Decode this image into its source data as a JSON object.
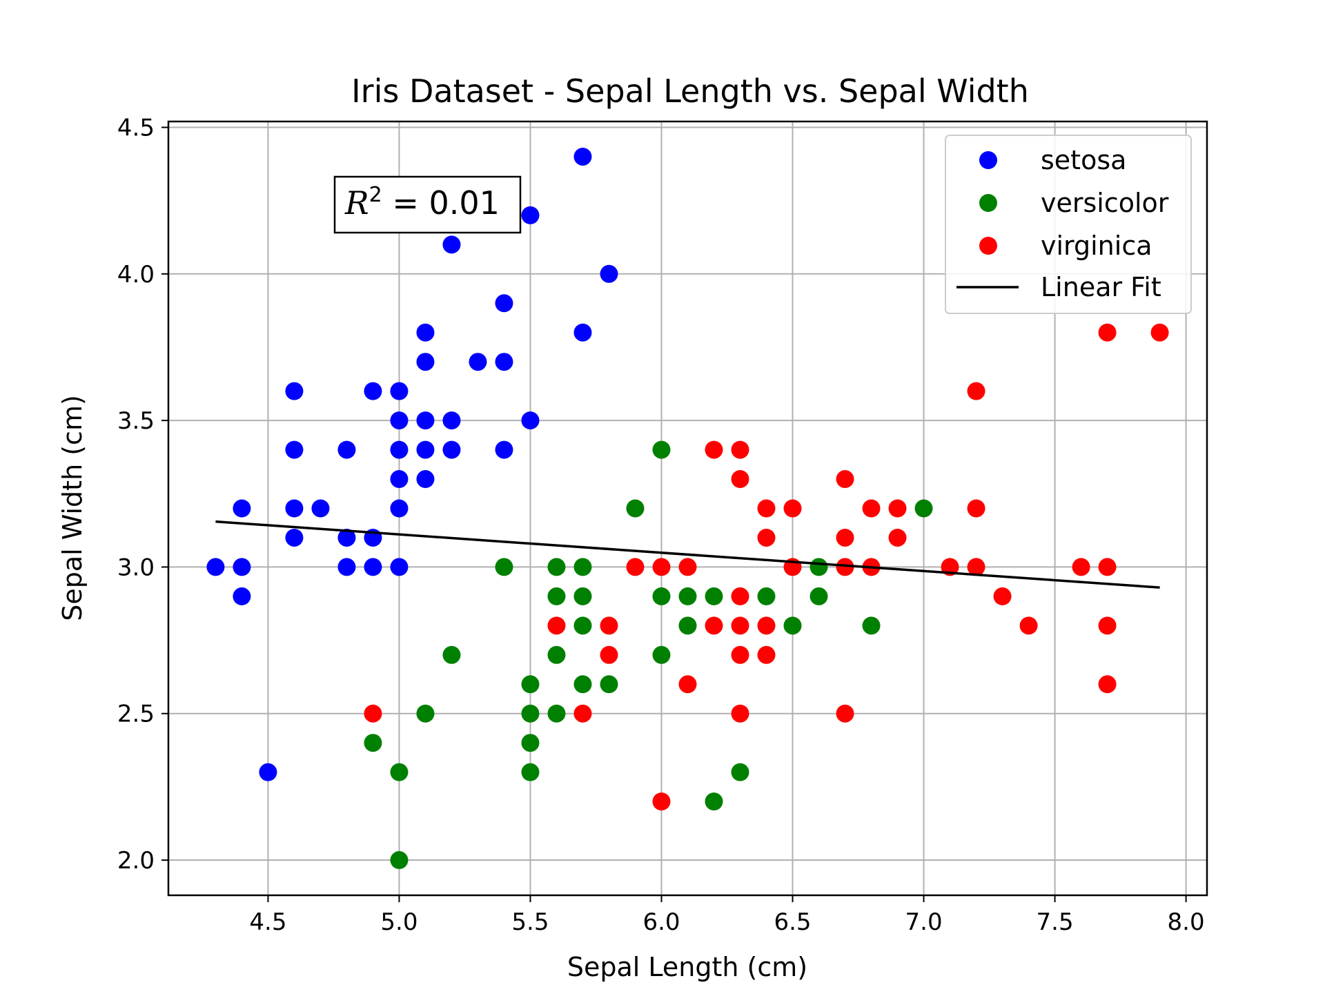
{
  "colors": {
    "setosa": "#0000ff",
    "versicolor": "#008000",
    "virginica": "#ff0000",
    "fit": "#000000",
    "grid": "#b0b0b0"
  },
  "chart_data": {
    "type": "scatter",
    "title": "Iris Dataset - Sepal Length vs. Sepal Width",
    "xlabel": "Sepal Length (cm)",
    "ylabel": "Sepal Width (cm)",
    "xlim": [
      4.12,
      8.08
    ],
    "ylim": [
      1.88,
      4.52
    ],
    "xticks": [
      4.5,
      5.0,
      5.5,
      6.0,
      6.5,
      7.0,
      7.5,
      8.0
    ],
    "xtick_labels": [
      "4.5",
      "5.0",
      "5.5",
      "6.0",
      "6.5",
      "7.0",
      "7.5",
      "8.0"
    ],
    "yticks": [
      2.0,
      2.5,
      3.0,
      3.5,
      4.0,
      4.5
    ],
    "ytick_labels": [
      "2.0",
      "2.5",
      "3.0",
      "3.5",
      "4.0",
      "4.5"
    ],
    "grid": true,
    "legend_position": "top-right",
    "annotation": {
      "text": "R^2 = 0.01",
      "base": "R",
      "exponent": "2",
      "rest": " = 0.01"
    },
    "series": [
      {
        "name": "setosa",
        "color": "#0000ff",
        "points": [
          [
            4.3,
            3.0
          ],
          [
            4.4,
            3.2
          ],
          [
            4.4,
            3.0
          ],
          [
            4.4,
            2.9
          ],
          [
            4.5,
            2.3
          ],
          [
            4.6,
            3.6
          ],
          [
            4.6,
            3.4
          ],
          [
            4.6,
            3.2
          ],
          [
            4.6,
            3.1
          ],
          [
            4.7,
            3.2
          ],
          [
            4.8,
            3.4
          ],
          [
            4.8,
            3.1
          ],
          [
            4.8,
            3.0
          ],
          [
            4.9,
            3.6
          ],
          [
            4.9,
            3.1
          ],
          [
            4.9,
            3.0
          ],
          [
            5.0,
            3.6
          ],
          [
            5.0,
            3.5
          ],
          [
            5.0,
            3.4
          ],
          [
            5.0,
            3.3
          ],
          [
            5.0,
            3.2
          ],
          [
            5.0,
            3.0
          ],
          [
            5.1,
            3.8
          ],
          [
            5.1,
            3.7
          ],
          [
            5.1,
            3.5
          ],
          [
            5.1,
            3.4
          ],
          [
            5.1,
            3.3
          ],
          [
            5.2,
            4.1
          ],
          [
            5.2,
            3.5
          ],
          [
            5.2,
            3.4
          ],
          [
            5.3,
            3.7
          ],
          [
            5.4,
            3.9
          ],
          [
            5.4,
            3.7
          ],
          [
            5.4,
            3.4
          ],
          [
            5.5,
            4.2
          ],
          [
            5.5,
            3.5
          ],
          [
            5.7,
            4.4
          ],
          [
            5.7,
            3.8
          ],
          [
            5.8,
            4.0
          ]
        ]
      },
      {
        "name": "versicolor",
        "color": "#008000",
        "points": [
          [
            4.9,
            2.4
          ],
          [
            5.0,
            2.3
          ],
          [
            5.0,
            2.0
          ],
          [
            5.1,
            2.5
          ],
          [
            5.2,
            2.7
          ],
          [
            5.4,
            3.0
          ],
          [
            5.5,
            2.6
          ],
          [
            5.5,
            2.5
          ],
          [
            5.5,
            2.4
          ],
          [
            5.5,
            2.3
          ],
          [
            5.6,
            3.0
          ],
          [
            5.6,
            2.9
          ],
          [
            5.6,
            2.7
          ],
          [
            5.6,
            2.5
          ],
          [
            5.7,
            3.0
          ],
          [
            5.7,
            2.9
          ],
          [
            5.7,
            2.8
          ],
          [
            5.7,
            2.6
          ],
          [
            5.8,
            2.6
          ],
          [
            5.9,
            3.2
          ],
          [
            6.0,
            3.4
          ],
          [
            6.0,
            2.9
          ],
          [
            6.0,
            2.7
          ],
          [
            6.1,
            2.9
          ],
          [
            6.1,
            2.8
          ],
          [
            6.2,
            2.9
          ],
          [
            6.2,
            2.2
          ],
          [
            6.3,
            2.3
          ],
          [
            6.4,
            2.9
          ],
          [
            6.5,
            2.8
          ],
          [
            6.6,
            3.0
          ],
          [
            6.6,
            2.9
          ],
          [
            6.8,
            2.8
          ],
          [
            7.0,
            3.2
          ]
        ]
      },
      {
        "name": "virginica",
        "color": "#ff0000",
        "points": [
          [
            4.9,
            2.5
          ],
          [
            5.6,
            2.8
          ],
          [
            5.7,
            2.5
          ],
          [
            5.8,
            2.8
          ],
          [
            5.8,
            2.7
          ],
          [
            5.9,
            3.0
          ],
          [
            6.0,
            3.0
          ],
          [
            6.0,
            2.2
          ],
          [
            6.1,
            3.0
          ],
          [
            6.1,
            2.6
          ],
          [
            6.2,
            3.4
          ],
          [
            6.2,
            2.8
          ],
          [
            6.3,
            3.4
          ],
          [
            6.3,
            3.3
          ],
          [
            6.3,
            2.9
          ],
          [
            6.3,
            2.8
          ],
          [
            6.3,
            2.7
          ],
          [
            6.3,
            2.5
          ],
          [
            6.4,
            3.2
          ],
          [
            6.4,
            3.1
          ],
          [
            6.4,
            2.8
          ],
          [
            6.4,
            2.7
          ],
          [
            6.5,
            3.2
          ],
          [
            6.5,
            3.0
          ],
          [
            6.7,
            3.3
          ],
          [
            6.7,
            3.1
          ],
          [
            6.7,
            3.0
          ],
          [
            6.7,
            2.5
          ],
          [
            6.8,
            3.2
          ],
          [
            6.8,
            3.0
          ],
          [
            6.9,
            3.2
          ],
          [
            6.9,
            3.1
          ],
          [
            7.1,
            3.0
          ],
          [
            7.2,
            3.6
          ],
          [
            7.2,
            3.2
          ],
          [
            7.2,
            3.0
          ],
          [
            7.3,
            2.9
          ],
          [
            7.4,
            2.8
          ],
          [
            7.6,
            3.0
          ],
          [
            7.7,
            3.8
          ],
          [
            7.7,
            3.0
          ],
          [
            7.7,
            2.8
          ],
          [
            7.7,
            2.6
          ],
          [
            7.9,
            3.8
          ]
        ]
      },
      {
        "name": "Linear Fit",
        "type": "line",
        "color": "#000000",
        "points": [
          [
            4.3,
            3.155
          ],
          [
            7.9,
            2.93
          ]
        ]
      }
    ]
  }
}
